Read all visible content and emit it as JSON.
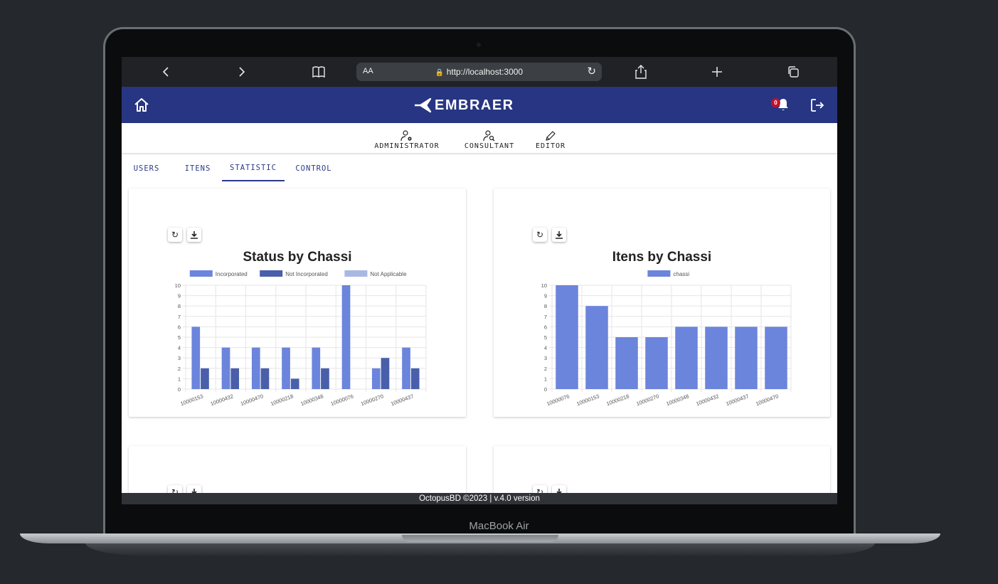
{
  "browser": {
    "url": "http://localhost:3000",
    "text_size_label": "AA"
  },
  "header": {
    "logo_text": "EMBRAER",
    "notification_count": "0"
  },
  "roles": [
    {
      "label": "ADMINISTRATOR"
    },
    {
      "label": "CONSULTANT"
    },
    {
      "label": "EDITOR"
    }
  ],
  "tabs": [
    {
      "label": "USERS"
    },
    {
      "label": "ITENS"
    },
    {
      "label": "STATISTIC",
      "active": true
    },
    {
      "label": "CONTROL"
    }
  ],
  "cards": {
    "status": {
      "title": "Status by Chassi"
    },
    "itens": {
      "title": "Itens by Chassi"
    }
  },
  "chart_data": [
    {
      "type": "bar",
      "title": "Status by Chassi",
      "categories": [
        "10000153",
        "10000432",
        "10000470",
        "10000218",
        "10000348",
        "10000076",
        "10000270",
        "10000437"
      ],
      "series": [
        {
          "name": "Incorporated",
          "color": "#6b84dc",
          "values": [
            6,
            4,
            4,
            4,
            4,
            10,
            2,
            4
          ]
        },
        {
          "name": "Not Incorporated",
          "color": "#4a5faa",
          "values": [
            2,
            2,
            2,
            1,
            2,
            0,
            3,
            2
          ]
        },
        {
          "name": "Not Applicable",
          "color": "#a9b8e3",
          "values": [
            0,
            0,
            0,
            0,
            0,
            0,
            0,
            0
          ]
        }
      ],
      "ylim": [
        0,
        10
      ],
      "yticks": [
        0,
        1,
        2,
        3,
        4,
        5,
        6,
        7,
        8,
        9,
        10
      ],
      "legend": "top",
      "grid": true
    },
    {
      "type": "bar",
      "title": "Itens by Chassi",
      "categories": [
        "10000076",
        "10000153",
        "10000218",
        "10000270",
        "10000348",
        "10000432",
        "10000437",
        "10000470"
      ],
      "series": [
        {
          "name": "chassi",
          "color": "#6b84dc",
          "values": [
            10,
            8,
            5,
            5,
            6,
            6,
            6,
            6
          ]
        }
      ],
      "ylim": [
        0,
        10
      ],
      "yticks": [
        0,
        1,
        2,
        3,
        4,
        5,
        6,
        7,
        8,
        9,
        10
      ],
      "legend": "top",
      "grid": true
    }
  ],
  "footer": {
    "text": "OctopusBD ©2023 | v.4.0 version"
  },
  "device_label": "MacBook Air"
}
